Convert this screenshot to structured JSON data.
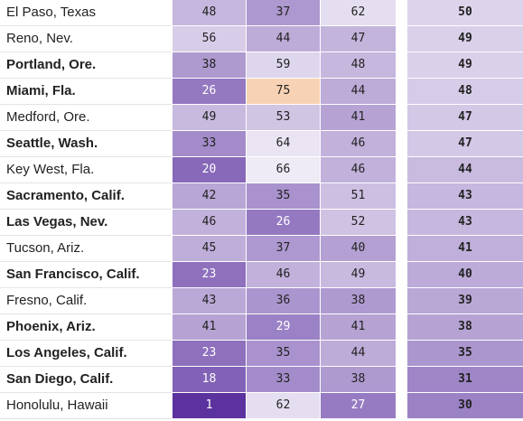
{
  "chart_data": {
    "type": "table",
    "rows": [
      {
        "city": "El Paso, Texas",
        "bold": false,
        "values": [
          48,
          37,
          62
        ],
        "score": 50
      },
      {
        "city": "Reno, Nev.",
        "bold": false,
        "values": [
          56,
          44,
          47
        ],
        "score": 49
      },
      {
        "city": "Portland, Ore.",
        "bold": true,
        "values": [
          38,
          59,
          48
        ],
        "score": 49
      },
      {
        "city": "Miami, Fla.",
        "bold": true,
        "values": [
          26,
          75,
          44
        ],
        "score": 48
      },
      {
        "city": "Medford, Ore.",
        "bold": false,
        "values": [
          49,
          53,
          41
        ],
        "score": 47
      },
      {
        "city": "Seattle, Wash.",
        "bold": true,
        "values": [
          33,
          64,
          46
        ],
        "score": 47
      },
      {
        "city": "Key West, Fla.",
        "bold": false,
        "values": [
          20,
          66,
          46
        ],
        "score": 44
      },
      {
        "city": "Sacramento, Calif.",
        "bold": true,
        "values": [
          42,
          35,
          51
        ],
        "score": 43
      },
      {
        "city": "Las Vegas, Nev.",
        "bold": true,
        "values": [
          46,
          26,
          52
        ],
        "score": 43
      },
      {
        "city": "Tucson, Ariz.",
        "bold": false,
        "values": [
          45,
          37,
          40
        ],
        "score": 41
      },
      {
        "city": "San Francisco, Calif.",
        "bold": true,
        "values": [
          23,
          46,
          49
        ],
        "score": 40
      },
      {
        "city": "Fresno, Calif.",
        "bold": false,
        "values": [
          43,
          36,
          38
        ],
        "score": 39
      },
      {
        "city": "Phoenix, Ariz.",
        "bold": true,
        "values": [
          41,
          29,
          41
        ],
        "score": 38
      },
      {
        "city": "Los Angeles, Calif.",
        "bold": true,
        "values": [
          23,
          35,
          44
        ],
        "score": 35
      },
      {
        "city": "San Diego, Calif.",
        "bold": true,
        "values": [
          18,
          33,
          38
        ],
        "score": 31
      },
      {
        "city": "Honolulu, Hawaii",
        "bold": false,
        "values": [
          1,
          62,
          27
        ],
        "score": 30
      }
    ],
    "colors": {
      "scale_light": "#f7f5fb",
      "scale_dark": "#5a2f9e",
      "highlight": "#f8d2b4",
      "text_dark": "#222222",
      "text_light": "#ffffff"
    }
  }
}
